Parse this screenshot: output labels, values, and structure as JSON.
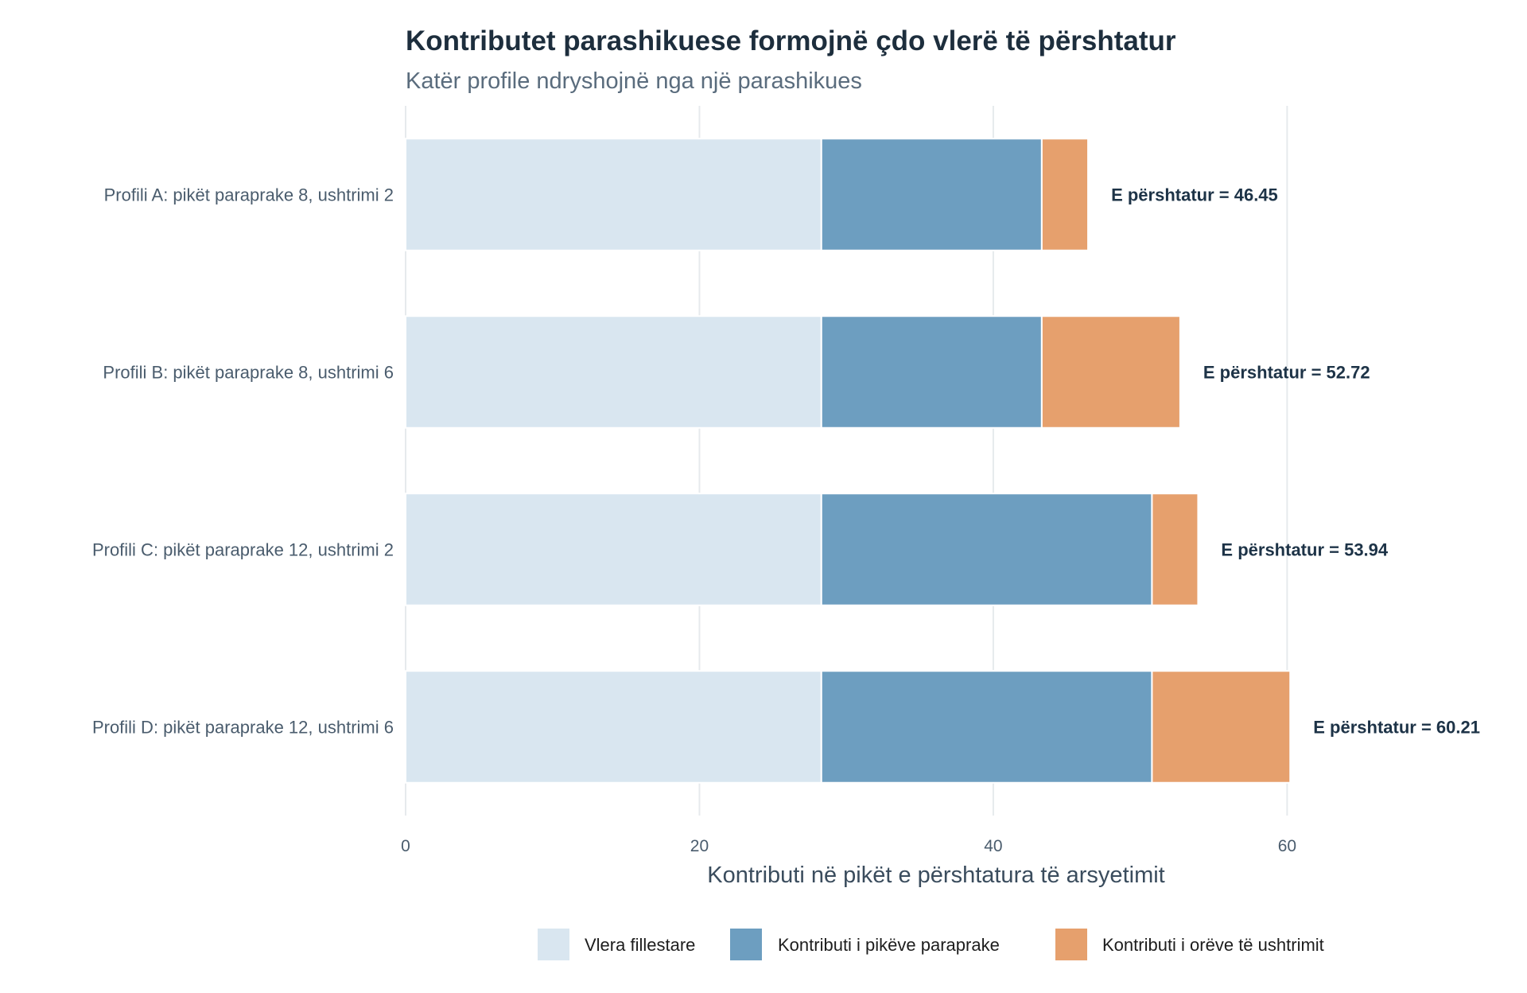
{
  "chart_data": {
    "type": "bar",
    "orientation": "horizontal",
    "stacked": true,
    "title": "Kontributet parashikuese formojnë çdo vlerë të përshtatur",
    "subtitle": "Katër profile ndryshojnë nga një parashikues",
    "xlabel": "Kontributi në pikët e përshtatura të arsyetimit",
    "ylabel": "",
    "xlim": [
      0,
      74
    ],
    "x_ticks": [
      0,
      20,
      40,
      60
    ],
    "grid": true,
    "legend_position": "bottom",
    "categories": [
      "Profili A: pikët paraprake 8, ushtrimi 2",
      "Profili B: pikët paraprake 8, ushtrimi 6",
      "Profili C: pikët paraprake 12, ushtrimi 2",
      "Profili D: pikët paraprake 12, ushtrimi 6"
    ],
    "series": [
      {
        "name": "Vlera fillestare",
        "color": "#d9e6f0",
        "values": [
          28.3,
          28.3,
          28.3,
          28.3
        ]
      },
      {
        "name": "Kontributi i pikëve paraprake",
        "color": "#6d9ec0",
        "values": [
          15.0,
          15.0,
          22.5,
          22.5
        ]
      },
      {
        "name": "Kontributi i orëve të ushtrimit",
        "color": "#e6a06d",
        "values": [
          3.15,
          9.42,
          3.14,
          9.41
        ]
      }
    ],
    "data_labels": [
      "E përshtatur = 46.45",
      "E përshtatur = 52.72",
      "E përshtatur = 53.94",
      "E përshtatur = 60.21"
    ]
  }
}
